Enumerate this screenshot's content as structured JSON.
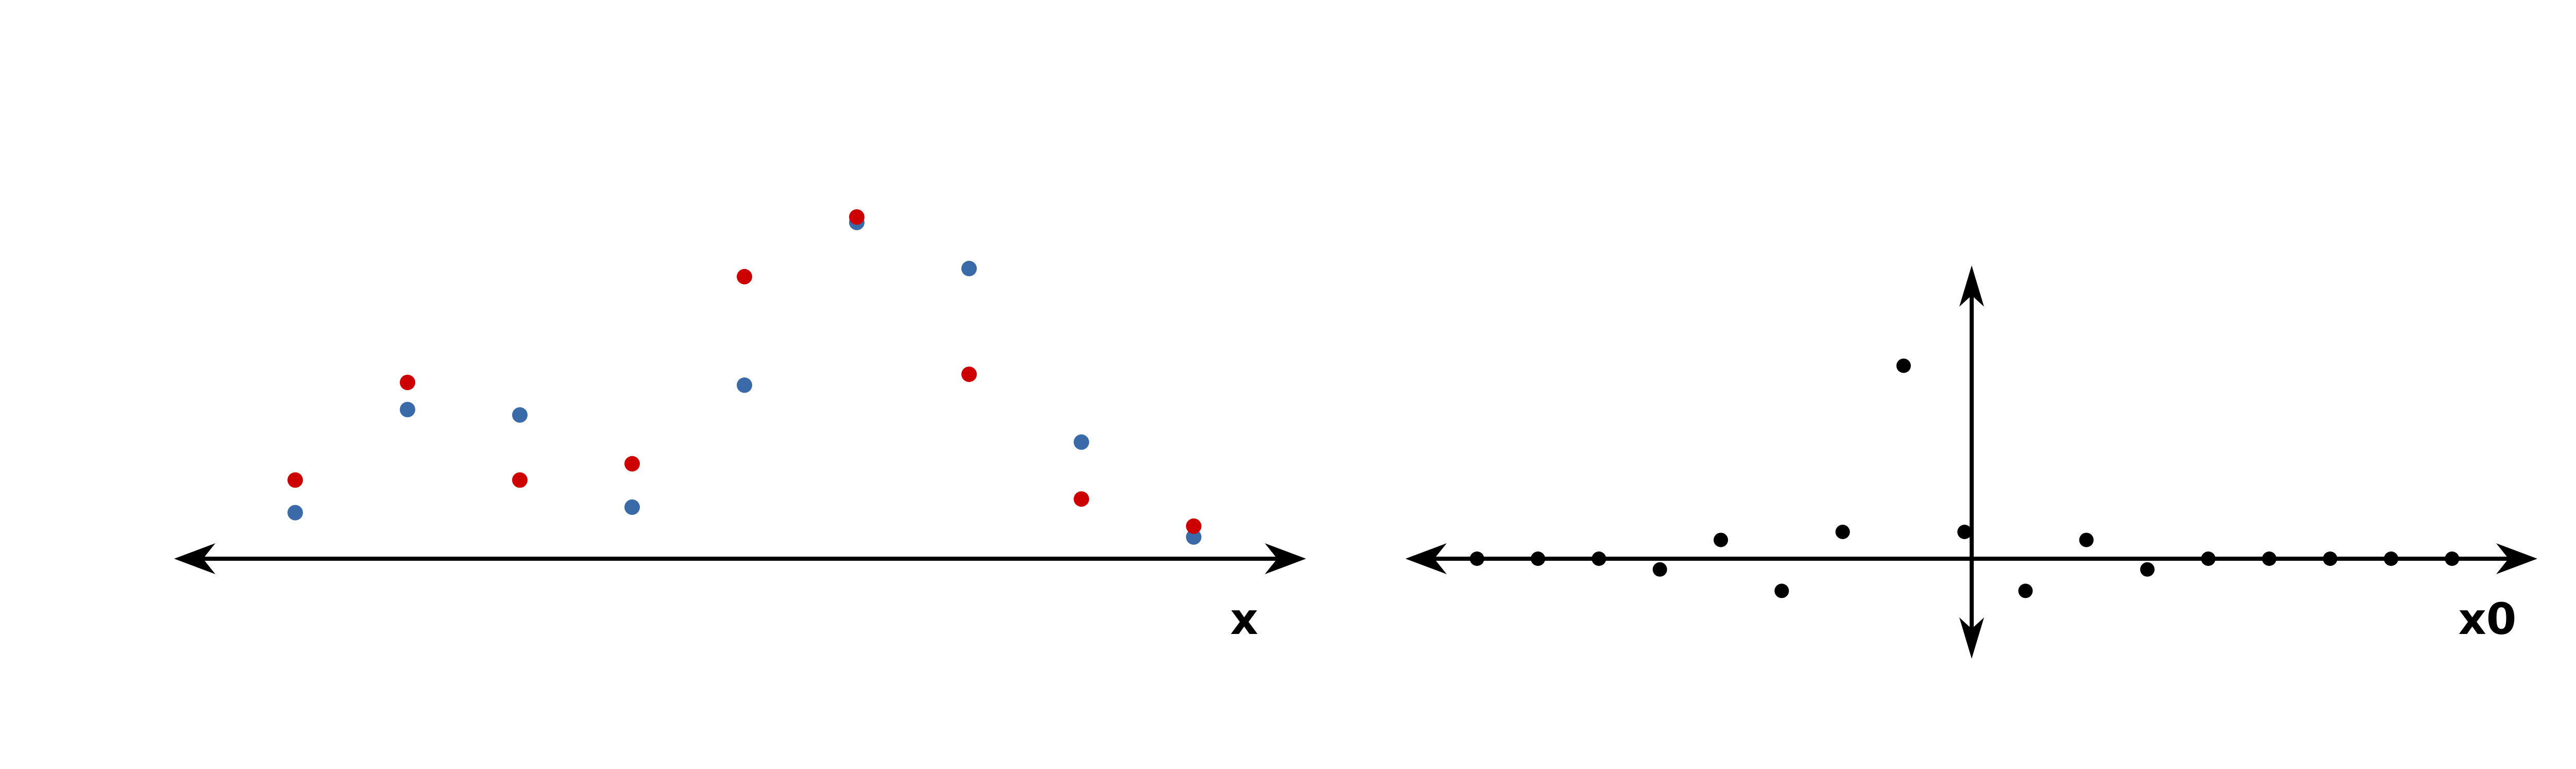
{
  "colors": {
    "axis": "#000000",
    "series_blue": "#3b6aa8",
    "series_red": "#cc0000",
    "series_black": "#000000",
    "background": "#ffffff"
  },
  "chart_data": [
    {
      "type": "scatter",
      "title": "",
      "xlabel": "x",
      "ylabel": "",
      "grid": false,
      "legend": "none",
      "x": [
        1,
        2,
        3,
        4,
        5,
        6,
        7,
        8,
        9
      ],
      "xlim": [
        0,
        10
      ],
      "ylim": [
        0,
        6.5
      ],
      "series": [
        {
          "color": "blue",
          "values": [
            0.85,
            2.75,
            2.65,
            0.95,
            3.2,
            6.2,
            5.35,
            2.15,
            0.4
          ]
        },
        {
          "color": "red",
          "values": [
            1.45,
            3.25,
            1.45,
            1.75,
            5.2,
            6.3,
            3.4,
            1.1,
            0.6
          ]
        }
      ]
    },
    {
      "type": "scatter",
      "title": "",
      "xlabel": "x0",
      "ylabel": "",
      "grid": false,
      "legend": "none",
      "x": [
        -8,
        -7,
        -6,
        -5,
        -4,
        -3,
        -2,
        -1,
        0,
        1,
        2,
        3,
        4,
        5,
        6,
        7,
        8
      ],
      "xlim": [
        -9.2,
        9.4
      ],
      "ylim": [
        -1.6,
        4.6
      ],
      "series": [
        {
          "color": "black",
          "values": [
            0,
            0,
            0,
            -0.2,
            0.35,
            -0.6,
            0.5,
            3.6,
            0.5,
            -0.6,
            0.35,
            -0.2,
            0,
            0,
            0,
            0,
            0
          ]
        }
      ]
    }
  ]
}
